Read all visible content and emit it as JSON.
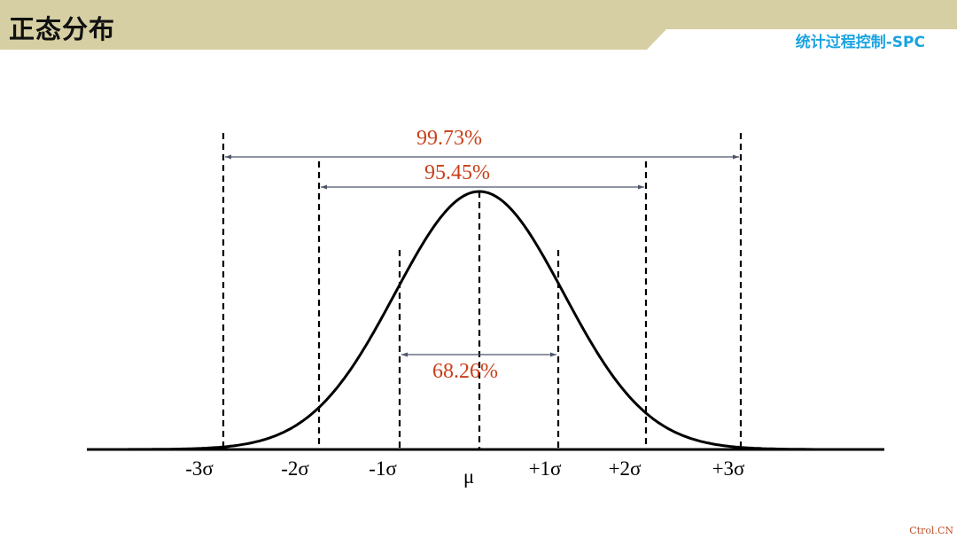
{
  "header": {
    "title": "正态分布",
    "subtitle": "统计过程控制-SPC",
    "colors": {
      "band": "#d6cfa3",
      "subtitle": "#1aa3e0"
    }
  },
  "diagram": {
    "axis_labels": [
      "-3σ",
      "-2σ",
      "-1σ",
      "μ",
      "+1σ",
      "+2σ",
      "+3σ"
    ],
    "ranges": [
      {
        "label": "99.73%",
        "from": "-3σ",
        "to": "+3σ"
      },
      {
        "label": "95.45%",
        "from": "-2σ",
        "to": "+2σ"
      },
      {
        "label": "68.26%",
        "from": "-1σ",
        "to": "+1σ"
      }
    ],
    "colors": {
      "percent_text": "#c8401b",
      "arrow": "#4a5568",
      "curve": "#000000"
    }
  },
  "watermark": "Ctrol.CN"
}
